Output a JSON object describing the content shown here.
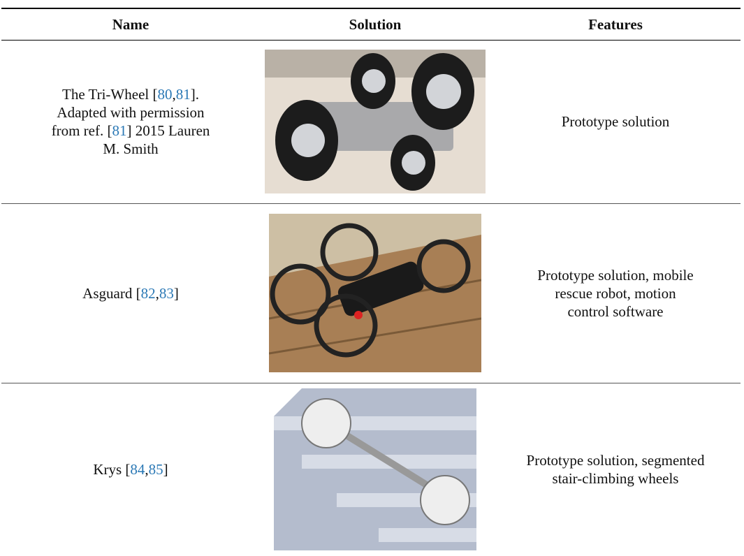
{
  "table": {
    "header": [
      "Name",
      "Solution",
      "Features"
    ],
    "rows": [
      {
        "name": [
          [
            "The Tri-Wheel [",
            {
              "ref": "80"
            },
            ",",
            {
              "ref": "81"
            },
            "]."
          ],
          [
            "Adapted with permission"
          ],
          [
            "from ref. [",
            {
              "ref": "81"
            },
            "] 2015 Lauren"
          ],
          [
            "M. Smith"
          ]
        ],
        "features": [
          "Prototype solution"
        ]
      },
      {
        "name": [
          [
            "Asguard [",
            {
              "ref": "82"
            },
            ",",
            {
              "ref": "83"
            },
            "]"
          ]
        ],
        "features": [
          "Prototype solution, mobile",
          "rescue robot, motion",
          "control software"
        ]
      },
      {
        "name": [
          [
            "Krys [",
            {
              "ref": "84"
            },
            ",",
            {
              "ref": "85"
            },
            "]"
          ]
        ],
        "features": [
          "Prototype solution, segmented",
          "stair-climbing wheels"
        ]
      }
    ]
  }
}
